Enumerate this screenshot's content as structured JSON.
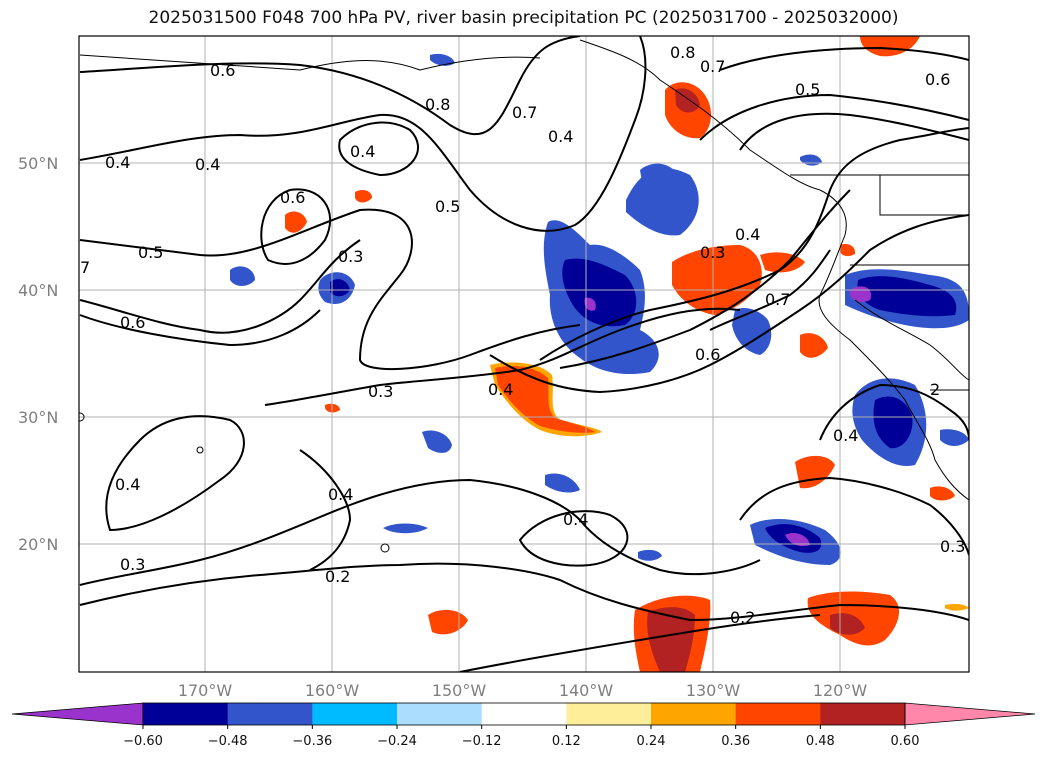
{
  "title": "2025031500 F048 700 hPa PV, river basin precipitation PC (2025031700 - 2025032000)",
  "lat_labels": [
    "50°N",
    "40°N",
    "30°N",
    "20°N"
  ],
  "lon_labels": [
    "170°W",
    "160°W",
    "150°W",
    "140°W",
    "130°W",
    "120°W"
  ],
  "colorbar": {
    "ticks": [
      "−0.60",
      "−0.48",
      "−0.36",
      "−0.24",
      "−0.12",
      "0.12",
      "0.24",
      "0.36",
      "0.48",
      "0.60"
    ],
    "colors": [
      "#9933cc",
      "#000099",
      "#3355cc",
      "#00bbff",
      "#aaddff",
      "#ffffff",
      "#ffee99",
      "#ffa500",
      "#ff4500",
      "#b22222",
      "#ff88aa"
    ]
  },
  "contour_labels": [
    "0.6",
    "0.4",
    "0.4",
    "0.4",
    "0.8",
    "0.7",
    "0.4",
    "0.8",
    "0.7",
    "0.5",
    "0.6",
    "0.6",
    "0.5",
    "0.3",
    "0.5",
    "7",
    "0.6",
    "0.3",
    "0.4",
    "0.7",
    "0.6",
    "0.3",
    "0.4",
    "0.4",
    "0.4",
    "0.3",
    "0.4",
    "0.2",
    "0.2",
    "0.3",
    "0.4",
    "2"
  ]
}
